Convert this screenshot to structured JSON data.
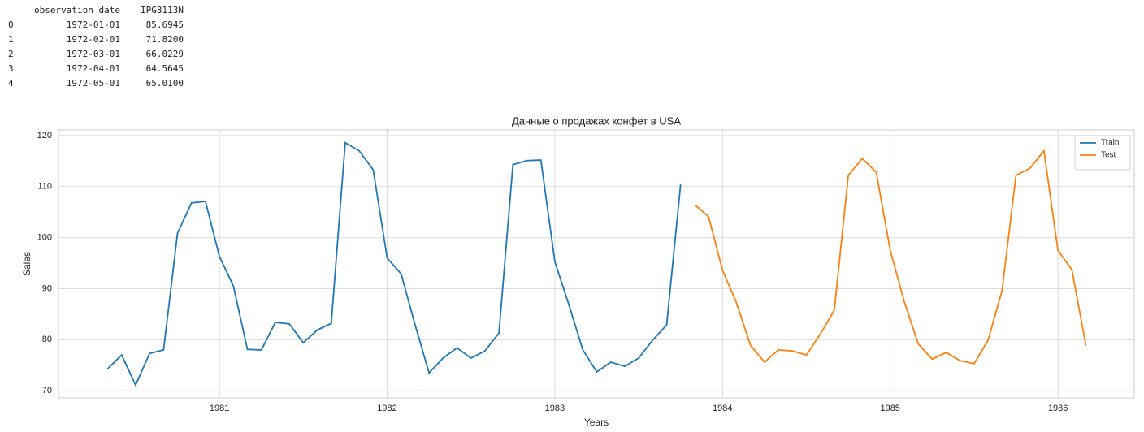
{
  "table": {
    "columns": [
      "observation_date",
      "IPG3113N"
    ],
    "rows": [
      [
        "0",
        "1972-01-01",
        "85.6945"
      ],
      [
        "1",
        "1972-02-01",
        "71.8200"
      ],
      [
        "2",
        "1972-03-01",
        "66.0229"
      ],
      [
        "3",
        "1972-04-01",
        "64.5645"
      ],
      [
        "4",
        "1972-05-01",
        "65.0100"
      ]
    ]
  },
  "chart_data": {
    "type": "line",
    "title": "Данные о продажах конфет в USA",
    "x_label": "Years",
    "y_label": "Sales",
    "xlim": [
      1980.04,
      1986.455
    ],
    "xticks": [
      1981,
      1982,
      1983,
      1984,
      1985,
      1986
    ],
    "ylim": [
      68.6,
      121.1
    ],
    "yticks": [
      70,
      80,
      90,
      100,
      110,
      120
    ],
    "grid": true,
    "legend": "upper-right",
    "series": [
      {
        "name": "Train",
        "color": "#1f77b4",
        "x": [
          1980.3333,
          1980.4167,
          1980.5,
          1980.5833,
          1980.6667,
          1980.75,
          1980.8333,
          1980.9167,
          1981,
          1981.0833,
          1981.1667,
          1981.25,
          1981.3333,
          1981.4167,
          1981.5,
          1981.5833,
          1981.6667,
          1981.75,
          1981.8333,
          1981.9167,
          1982,
          1982.0833,
          1982.1667,
          1982.25,
          1982.3333,
          1982.4167,
          1982.5,
          1982.5833,
          1982.6667,
          1982.75,
          1982.8333,
          1982.9167,
          1983,
          1983.0833,
          1983.1667,
          1983.25,
          1983.3333,
          1983.4167,
          1983.5,
          1983.5833,
          1983.6667,
          1983.75
        ],
        "values": [
          74.3,
          77.0,
          71.1,
          77.3,
          78.0,
          100.9,
          106.8,
          107.1,
          96.3,
          90.5,
          78.1,
          78.0,
          83.4,
          83.1,
          79.4,
          81.9,
          83.2,
          118.6,
          117.0,
          113.3,
          96.0,
          92.9,
          82.9,
          73.5,
          76.4,
          78.4,
          76.4,
          77.8,
          81.3,
          114.3,
          115.1,
          115.2,
          95.3,
          86.9,
          78.0,
          73.7,
          75.6,
          74.8,
          76.4,
          79.9,
          82.9,
          110.4
        ]
      },
      {
        "name": "Test",
        "color": "#ff7f0e",
        "x": [
          1983.8333,
          1983.9167,
          1984,
          1984.0833,
          1984.1667,
          1984.25,
          1984.3333,
          1984.4167,
          1984.5,
          1984.5833,
          1984.6667,
          1984.75,
          1984.8333,
          1984.9167,
          1985,
          1985.0833,
          1985.1667,
          1985.25,
          1985.3333,
          1985.4167,
          1985.5,
          1985.5833,
          1985.6667,
          1985.75,
          1985.8333,
          1985.9167,
          1986,
          1986.0833,
          1986.1667
        ],
        "values": [
          106.5,
          104.1,
          93.6,
          87.2,
          78.9,
          75.6,
          78.0,
          77.8,
          77.0,
          81.1,
          85.8,
          112.2,
          115.5,
          112.8,
          97.5,
          87.5,
          79.2,
          76.2,
          77.5,
          75.9,
          75.3,
          79.9,
          89.6,
          112.2,
          113.6,
          117.0,
          97.5,
          93.7,
          78.9
        ]
      }
    ]
  }
}
